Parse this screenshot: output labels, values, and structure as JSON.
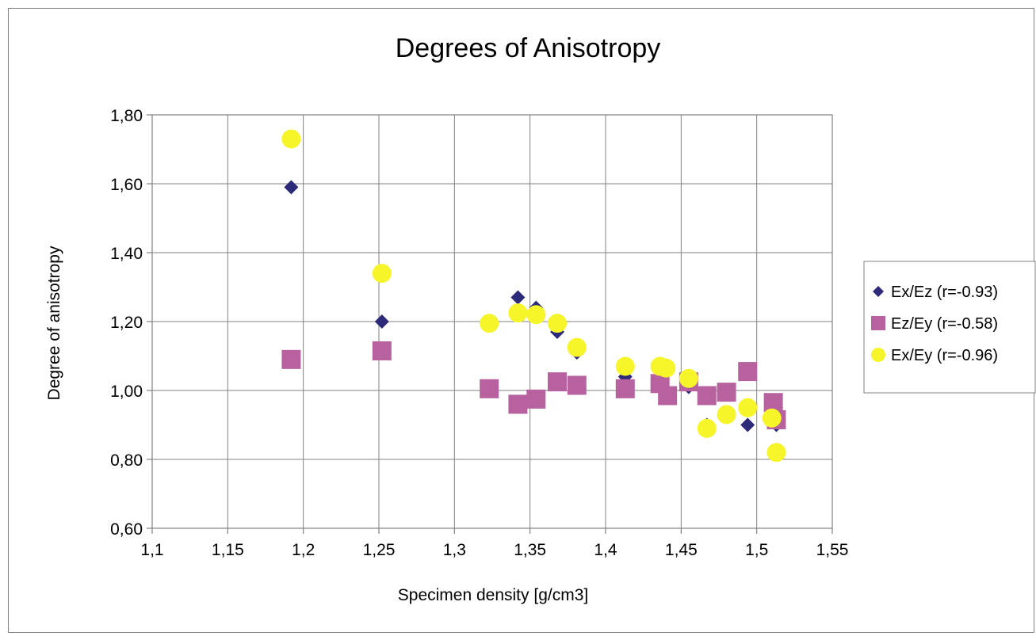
{
  "chart_data": {
    "type": "scatter",
    "title": "Degrees of Anisotropy",
    "xlabel": "Specimen density [g/cm3]",
    "ylabel": "Degree of anisotropy",
    "xlim": [
      1.1,
      1.55
    ],
    "ylim": [
      0.6,
      1.8
    ],
    "xticks": [
      "1,1",
      "1,15",
      "1,2",
      "1,25",
      "1,3",
      "1,35",
      "1,4",
      "1,45",
      "1,5",
      "1,55"
    ],
    "yticks": [
      "0,60",
      "0,80",
      "1,00",
      "1,20",
      "1,40",
      "1,60",
      "1,80"
    ],
    "grid": true,
    "legend_position": "right",
    "series": [
      {
        "name": "Ex/Ez (r=-0.93)",
        "marker": "diamond",
        "color": "#2E2A7A",
        "points": [
          {
            "x": 1.192,
            "y": 1.59
          },
          {
            "x": 1.252,
            "y": 1.2
          },
          {
            "x": 1.342,
            "y": 1.27
          },
          {
            "x": 1.354,
            "y": 1.24
          },
          {
            "x": 1.368,
            "y": 1.17
          },
          {
            "x": 1.381,
            "y": 1.11
          },
          {
            "x": 1.413,
            "y": 1.04
          },
          {
            "x": 1.438,
            "y": 1.07
          },
          {
            "x": 1.455,
            "y": 1.01
          },
          {
            "x": 1.467,
            "y": 0.9
          },
          {
            "x": 1.494,
            "y": 0.9
          },
          {
            "x": 1.513,
            "y": 0.9
          }
        ]
      },
      {
        "name": "Ez/Ey (r=-0.58)",
        "marker": "square",
        "color": "#B8619F",
        "points": [
          {
            "x": 1.192,
            "y": 1.09
          },
          {
            "x": 1.252,
            "y": 1.115
          },
          {
            "x": 1.323,
            "y": 1.005
          },
          {
            "x": 1.342,
            "y": 0.96
          },
          {
            "x": 1.354,
            "y": 0.975
          },
          {
            "x": 1.368,
            "y": 1.025
          },
          {
            "x": 1.381,
            "y": 1.015
          },
          {
            "x": 1.413,
            "y": 1.005
          },
          {
            "x": 1.436,
            "y": 1.02
          },
          {
            "x": 1.441,
            "y": 0.985
          },
          {
            "x": 1.455,
            "y": 1.025
          },
          {
            "x": 1.467,
            "y": 0.985
          },
          {
            "x": 1.48,
            "y": 0.995
          },
          {
            "x": 1.494,
            "y": 1.055
          },
          {
            "x": 1.511,
            "y": 0.965
          },
          {
            "x": 1.513,
            "y": 0.915
          }
        ]
      },
      {
        "name": "Ex/Ey (r=-0.96)",
        "marker": "circle",
        "color": "#F5F52A",
        "points": [
          {
            "x": 1.192,
            "y": 1.73
          },
          {
            "x": 1.252,
            "y": 1.34
          },
          {
            "x": 1.323,
            "y": 1.195
          },
          {
            "x": 1.342,
            "y": 1.225
          },
          {
            "x": 1.354,
            "y": 1.22
          },
          {
            "x": 1.368,
            "y": 1.195
          },
          {
            "x": 1.381,
            "y": 1.125
          },
          {
            "x": 1.413,
            "y": 1.07
          },
          {
            "x": 1.436,
            "y": 1.07
          },
          {
            "x": 1.44,
            "y": 1.065
          },
          {
            "x": 1.455,
            "y": 1.035
          },
          {
            "x": 1.467,
            "y": 0.89
          },
          {
            "x": 1.48,
            "y": 0.93
          },
          {
            "x": 1.494,
            "y": 0.95
          },
          {
            "x": 1.51,
            "y": 0.92
          },
          {
            "x": 1.513,
            "y": 0.82
          }
        ]
      }
    ]
  }
}
